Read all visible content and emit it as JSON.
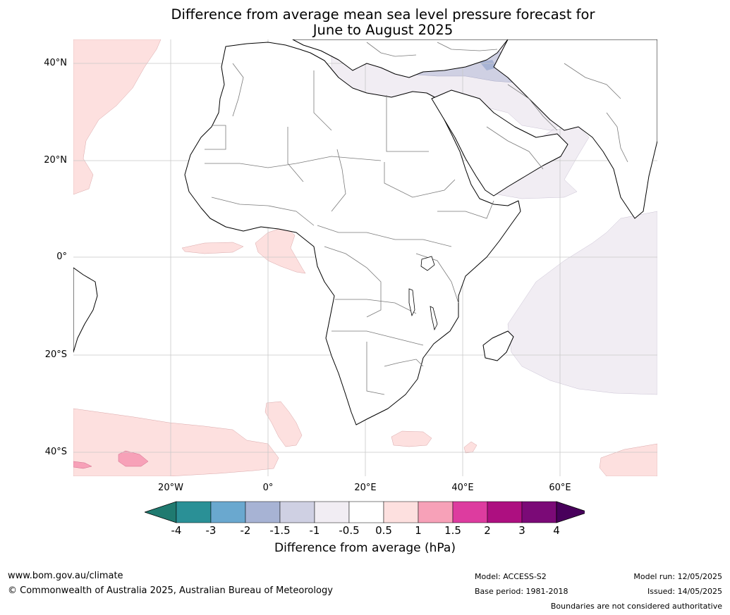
{
  "title_line1": "Difference from average mean sea level pressure forecast for",
  "title_line2": "June to August 2025",
  "lat_labels": [
    "40°N",
    "20°N",
    "0°",
    "20°S",
    "40°S"
  ],
  "lon_labels": [
    "20°W",
    "0°",
    "20°E",
    "40°E",
    "60°E"
  ],
  "colorbar": {
    "ticks": [
      "-4",
      "-3",
      "-2",
      "-1.5",
      "-1",
      "-0.5",
      "0.5",
      "1",
      "1.5",
      "2",
      "3",
      "4"
    ],
    "colors": [
      "#1f7a70",
      "#2a9096",
      "#6aa8cf",
      "#a7b3d4",
      "#cfd0e3",
      "#f1edf3",
      "#ffffff",
      "#fde0df",
      "#f7a1b8",
      "#dd3c9f",
      "#ad0f80",
      "#7b0a77",
      "#48005b"
    ],
    "label": "Difference from average (hPa)"
  },
  "footer": {
    "website": "www.bom.gov.au/climate",
    "copyright": "© Commonwealth of Australia 2025, Australian Bureau of Meteorology",
    "model": "Model: ACCESS-S2",
    "base_period": "Base period: 1981-2018",
    "model_run": "Model run: 12/05/2025",
    "issued": "Issued: 14/05/2025",
    "boundaries_note": "Boundaries are not considered authoritative"
  }
}
